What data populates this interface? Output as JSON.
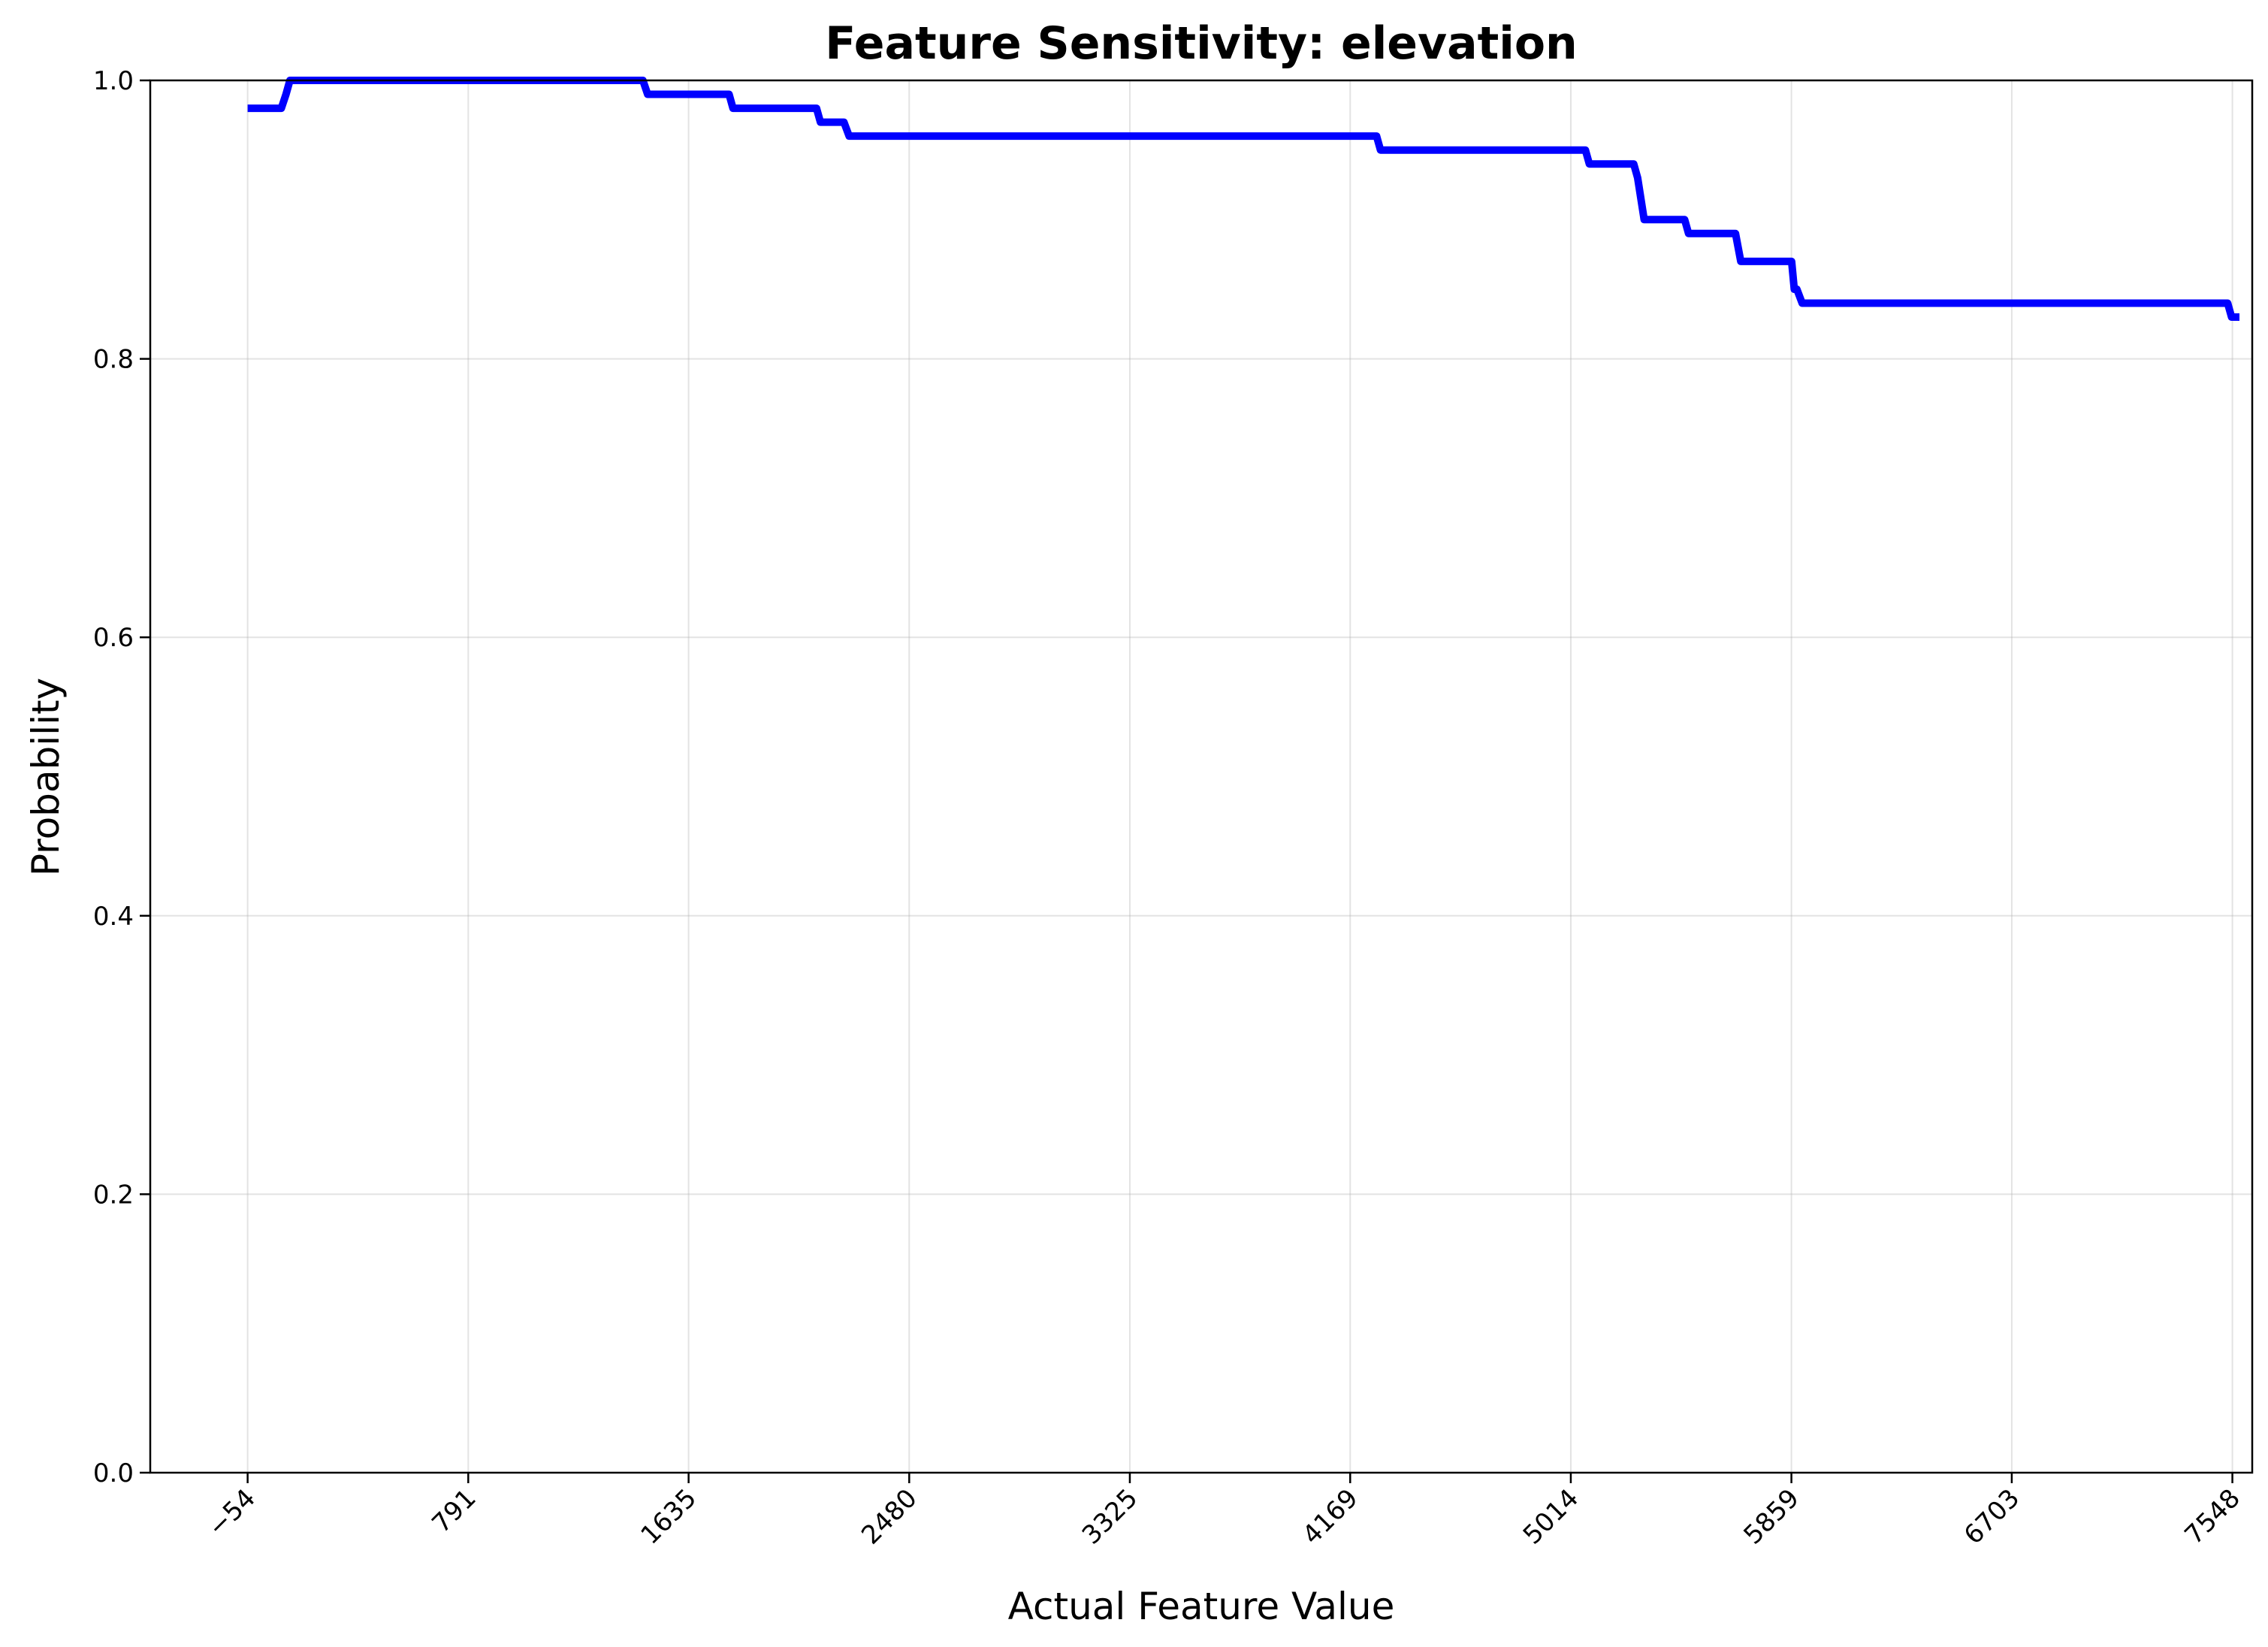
{
  "chart_data": {
    "type": "line",
    "title": "Feature Sensitivity: elevation",
    "xlabel": "Actual Feature Value",
    "ylabel": "Probability",
    "xlim": [
      -427,
      7624
    ],
    "ylim": [
      0.0,
      1.0
    ],
    "grid": true,
    "x_ticks": [
      -54,
      791,
      1635,
      2480,
      3325,
      4169,
      5014,
      5859,
      6703,
      7548
    ],
    "x_tick_labels": [
      "−54",
      "791",
      "1635",
      "2480",
      "3325",
      "4169",
      "5014",
      "5859",
      "6703",
      "7548"
    ],
    "y_ticks": [
      0.0,
      0.2,
      0.4,
      0.6,
      0.8,
      1.0
    ],
    "y_tick_labels": [
      "0.0",
      "0.2",
      "0.4",
      "0.6",
      "0.8",
      "1.0"
    ],
    "series": [
      {
        "color": "#0000ff",
        "x": [
          -54,
          75,
          93,
          108,
          1460,
          1478,
          1790,
          1805,
          2125,
          2140,
          2230,
          2250,
          4270,
          4285,
          5070,
          5085,
          5255,
          5270,
          5295,
          5450,
          5465,
          5645,
          5665,
          5860,
          5870,
          5880,
          5900,
          7530,
          7545,
          7575
        ],
        "y": [
          0.98,
          0.98,
          0.99,
          1.0,
          1.0,
          0.99,
          0.99,
          0.98,
          0.98,
          0.97,
          0.97,
          0.96,
          0.96,
          0.95,
          0.95,
          0.94,
          0.94,
          0.93,
          0.9,
          0.9,
          0.89,
          0.89,
          0.87,
          0.87,
          0.85,
          0.85,
          0.84,
          0.84,
          0.83,
          0.83
        ]
      }
    ]
  }
}
